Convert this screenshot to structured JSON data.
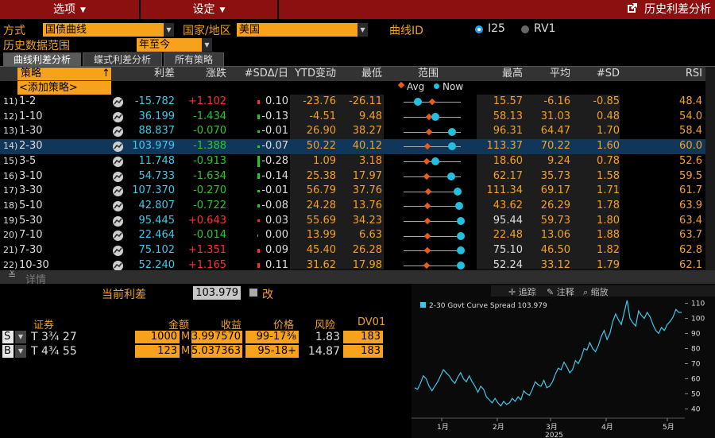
{
  "menu": {
    "options": "选项",
    "settings": "设定",
    "title": "历史利差分析"
  },
  "params": {
    "method_label": "方式",
    "method_value": "国债曲线",
    "country_label": "国家/地区",
    "country_value": "美国",
    "curve_id_label": "曲线ID",
    "radio1": "I25",
    "radio2": "RV1",
    "history_label": "历史数据范围",
    "history_value": "年至今"
  },
  "tabs": [
    "曲线利差分析",
    "蝶式利差分析",
    "所有策略"
  ],
  "headers": {
    "strategy": "策略",
    "spread": "利差",
    "change": "涨跌",
    "sd_day": "#SDΔ/日",
    "ytd": "YTD变动",
    "low": "最低",
    "range": "范围",
    "high": "最高",
    "avg": "平均",
    "sd": "#SD",
    "rsi": "RSI",
    "add": "<添加策略>",
    "legend_avg": "Avg",
    "legend_now": "Now"
  },
  "rows": [
    {
      "n": "11)",
      "name": "1-2",
      "spread": "-15.782",
      "chg": "+1.102",
      "sdd": "0.10",
      "ytd": "-23.76",
      "low": "-26.11",
      "high": "15.57",
      "avg": "-6.16",
      "sd": "-0.85",
      "rsi": "48.4",
      "pos_now": 0.25,
      "pos_avg": 0.5,
      "sdd_val": 0.1
    },
    {
      "n": "12)",
      "name": "1-10",
      "spread": "36.199",
      "chg": "-1.434",
      "sdd": "-0.13",
      "ytd": "-4.51",
      "low": "9.48",
      "high": "58.13",
      "avg": "31.03",
      "sd": "0.48",
      "rsi": "54.0",
      "pos_now": 0.55,
      "pos_avg": 0.45,
      "sdd_val": -0.13
    },
    {
      "n": "13)",
      "name": "1-30",
      "spread": "88.837",
      "chg": "-0.070",
      "sdd": "-0.01",
      "ytd": "26.90",
      "low": "38.27",
      "high": "96.31",
      "avg": "64.47",
      "sd": "1.70",
      "rsi": "58.4",
      "pos_now": 0.85,
      "pos_avg": 0.45,
      "sdd_val": -0.01
    },
    {
      "n": "14)",
      "name": "2-30",
      "spread": "103.979",
      "chg": "-1.388",
      "sdd": "-0.07",
      "ytd": "50.22",
      "low": "40.12",
      "high": "113.37",
      "avg": "70.22",
      "sd": "1.60",
      "rsi": "60.0",
      "pos_now": 0.85,
      "pos_avg": 0.41,
      "sdd_val": -0.07
    },
    {
      "n": "15)",
      "name": "3-5",
      "spread": "11.748",
      "chg": "-0.913",
      "sdd": "-0.28",
      "ytd": "1.09",
      "low": "3.18",
      "high": "18.60",
      "avg": "9.24",
      "sd": "0.78",
      "rsi": "52.6",
      "pos_now": 0.55,
      "pos_avg": 0.4,
      "sdd_val": -0.28
    },
    {
      "n": "16)",
      "name": "3-10",
      "spread": "54.733",
      "chg": "-1.634",
      "sdd": "-0.14",
      "ytd": "25.38",
      "low": "17.97",
      "high": "62.17",
      "avg": "35.73",
      "sd": "1.58",
      "rsi": "59.5",
      "pos_now": 0.83,
      "pos_avg": 0.4,
      "sdd_val": -0.14
    },
    {
      "n": "17)",
      "name": "3-30",
      "spread": "107.370",
      "chg": "-0.270",
      "sdd": "-0.01",
      "ytd": "56.79",
      "low": "37.76",
      "high": "111.34",
      "avg": "69.17",
      "sd": "1.71",
      "rsi": "61.7",
      "pos_now": 0.95,
      "pos_avg": 0.43,
      "sdd_val": -0.01
    },
    {
      "n": "18)",
      "name": "5-10",
      "spread": "42.807",
      "chg": "-0.722",
      "sdd": "-0.08",
      "ytd": "24.28",
      "low": "13.76",
      "high": "43.62",
      "avg": "26.29",
      "sd": "1.78",
      "rsi": "63.9",
      "pos_now": 0.97,
      "pos_avg": 0.42,
      "sdd_val": -0.08
    },
    {
      "n": "19)",
      "name": "5-30",
      "spread": "95.445",
      "chg": "+0.643",
      "sdd": "0.03",
      "ytd": "55.69",
      "low": "34.23",
      "high": "95.44",
      "avg": "59.73",
      "sd": "1.80",
      "rsi": "63.4",
      "pos_now": 1.0,
      "pos_avg": 0.42,
      "sdd_val": 0.03
    },
    {
      "n": "20)",
      "name": "7-10",
      "spread": "22.464",
      "chg": "-0.014",
      "sdd": "0.00",
      "ytd": "13.99",
      "low": "6.63",
      "high": "22.48",
      "avg": "13.06",
      "sd": "1.88",
      "rsi": "63.7",
      "pos_now": 1.0,
      "pos_avg": 0.42,
      "sdd_val": 0.0
    },
    {
      "n": "21)",
      "name": "7-30",
      "spread": "75.102",
      "chg": "+1.351",
      "sdd": "0.09",
      "ytd": "45.40",
      "low": "26.28",
      "high": "75.10",
      "avg": "46.50",
      "sd": "1.82",
      "rsi": "62.8",
      "pos_now": 1.0,
      "pos_avg": 0.41,
      "sdd_val": 0.09
    },
    {
      "n": "22)",
      "name": "10-30",
      "spread": "52.240",
      "chg": "+1.165",
      "sdd": "0.11",
      "ytd": "31.62",
      "low": "17.98",
      "high": "52.24",
      "avg": "33.12",
      "sd": "1.79",
      "rsi": "62.1",
      "pos_now": 1.0,
      "pos_avg": 0.4,
      "sdd_val": 0.11
    }
  ],
  "detail": {
    "toggle": "详情",
    "current_label": "当前利差",
    "current_value": "103.979",
    "edit_label": "改",
    "cols": {
      "security": "证券",
      "amount": "金额",
      "yield": "收益",
      "price": "价格",
      "risk": "风险",
      "dv01": "DV01"
    },
    "legs": [
      {
        "side": "S",
        "security": "T 3¾ 27",
        "amount": "1000",
        "unit": "M",
        "yield": "3.997570",
        "price": "99-17⅜",
        "risk": "1.83",
        "dv01": "183"
      },
      {
        "side": "B",
        "security": "T 4¾ 55",
        "amount": "123",
        "unit": "M",
        "yield": "5.037363",
        "price": "95-18+",
        "risk": "14.87",
        "dv01": "183"
      }
    ]
  },
  "chart_toolbar": {
    "track": "追踪",
    "annotate": "注释",
    "zoom": "缩放"
  },
  "chart_data": {
    "type": "line",
    "title": "2-30 Govt Curve Spread",
    "last_value": "103.979",
    "x_tick_labels": [
      "1月",
      "2月",
      "3月",
      "4月",
      "5月"
    ],
    "x_year_label": "2025",
    "y_ticks": [
      40,
      50,
      60,
      70,
      80,
      90,
      100,
      110
    ],
    "ylim": [
      36,
      114
    ],
    "series": [
      {
        "name": "2-30 Govt Curve Spread",
        "color": "#3cc8e8",
        "values": [
          54,
          53,
          57,
          62,
          60,
          55,
          52,
          55,
          58,
          62,
          66,
          64,
          62,
          59,
          57,
          61,
          64,
          60,
          58,
          62,
          58,
          55,
          51,
          55,
          53,
          48,
          46,
          44,
          47,
          44,
          42,
          45,
          43,
          44,
          47,
          45,
          48,
          46,
          52,
          50,
          49,
          53,
          58,
          56,
          55,
          59,
          54,
          55,
          58,
          63,
          67,
          66,
          71,
          68,
          64,
          66,
          72,
          70,
          74,
          80,
          79,
          84,
          80,
          78,
          82,
          88,
          92,
          86,
          90,
          98,
          103,
          99,
          96,
          104,
          112,
          100,
          97,
          95,
          105,
          102,
          100,
          104,
          101,
          96,
          92,
          90,
          94,
          92,
          96,
          98,
          101,
          106,
          104,
          104
        ]
      }
    ]
  }
}
